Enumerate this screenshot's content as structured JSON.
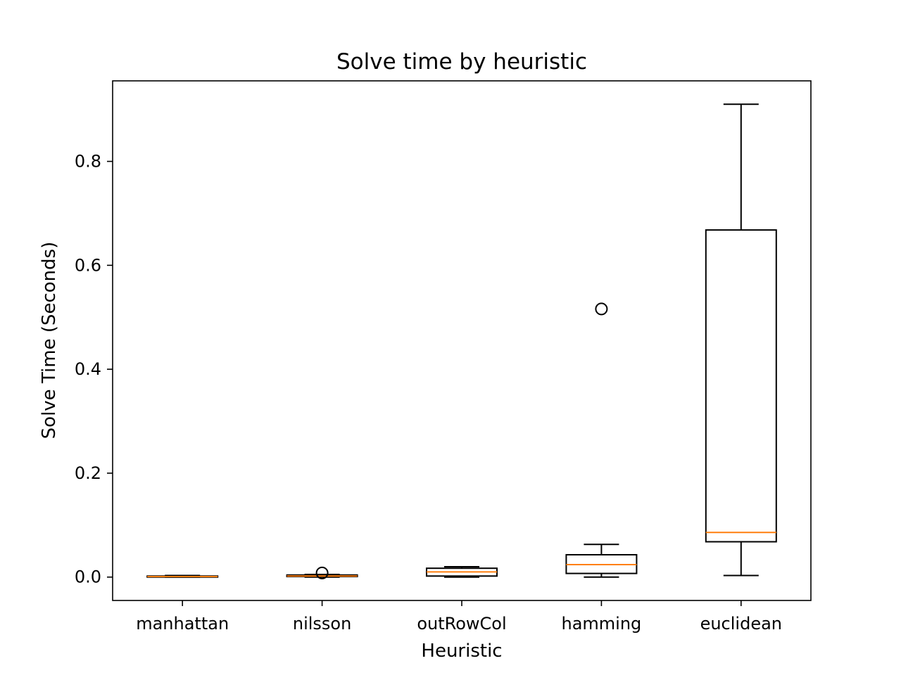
{
  "chart_data": {
    "type": "box",
    "title": "Solve time by heuristic",
    "xlabel": "Heuristic",
    "ylabel": "Solve Time (Seconds)",
    "ylim": [
      -0.045,
      0.955
    ],
    "yticks": [
      0.0,
      0.2,
      0.4,
      0.6,
      0.8
    ],
    "ytick_labels": [
      "0.0",
      "0.2",
      "0.4",
      "0.6",
      "0.8"
    ],
    "grid": false,
    "colors": {
      "box": "#000000",
      "median": "#ff7f0e",
      "outlier": "#000000"
    },
    "boxes": [
      {
        "name": "manhattan",
        "whisker_low": 0.0,
        "q1": 0.0,
        "median": 0.001,
        "q3": 0.002,
        "whisker_high": 0.003,
        "outliers": []
      },
      {
        "name": "nilsson",
        "whisker_low": 0.0,
        "q1": 0.001,
        "median": 0.002,
        "q3": 0.004,
        "whisker_high": 0.005,
        "outliers": [
          0.008
        ]
      },
      {
        "name": "outRowCol",
        "whisker_low": 0.0,
        "q1": 0.002,
        "median": 0.01,
        "q3": 0.017,
        "whisker_high": 0.02,
        "outliers": []
      },
      {
        "name": "hamming",
        "whisker_low": 0.0,
        "q1": 0.007,
        "median": 0.024,
        "q3": 0.043,
        "whisker_high": 0.063,
        "outliers": [
          0.516
        ]
      },
      {
        "name": "euclidean",
        "whisker_low": 0.003,
        "q1": 0.068,
        "median": 0.086,
        "q3": 0.668,
        "whisker_high": 0.91,
        "outliers": []
      }
    ]
  }
}
